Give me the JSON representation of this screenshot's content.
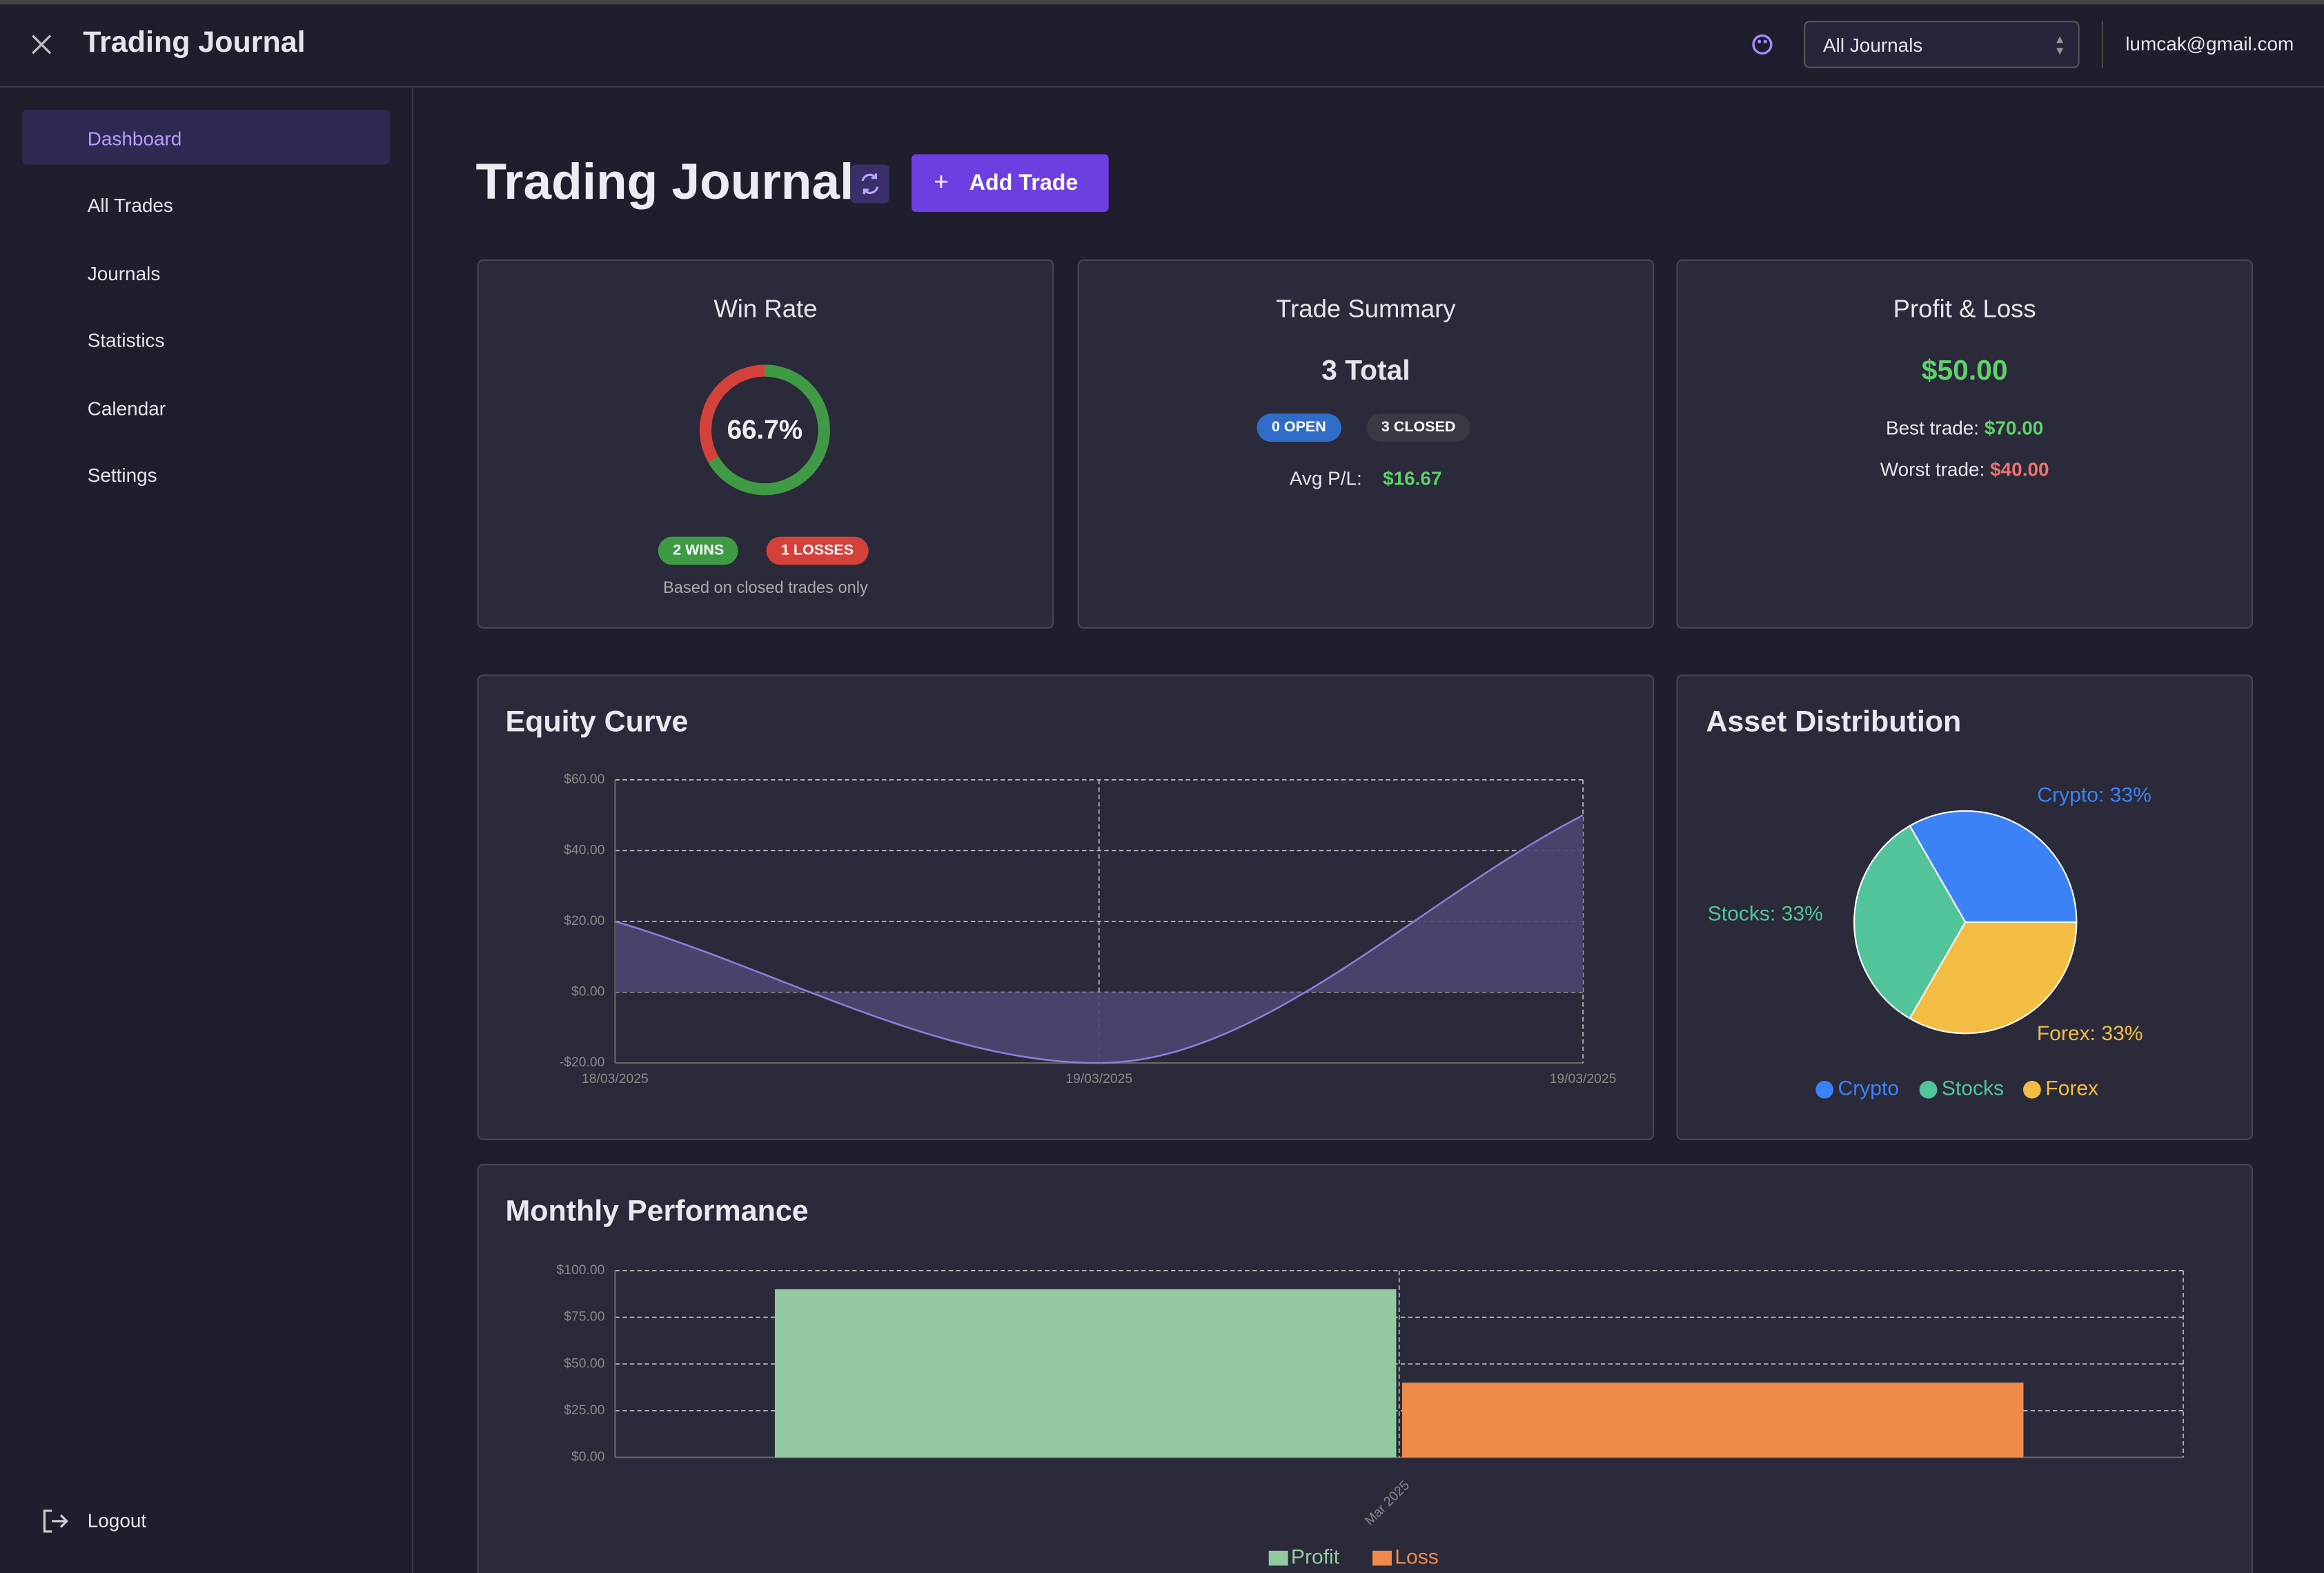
{
  "header": {
    "title": "Trading Journal",
    "journal_select": "All Journals",
    "user_email": "lumcak@gmail.com"
  },
  "sidebar": {
    "items": [
      "Dashboard",
      "All Trades",
      "Journals",
      "Statistics",
      "Calendar",
      "Settings"
    ],
    "logout": "Logout"
  },
  "page": {
    "title": "Trading Journal",
    "add_button": "Add Trade"
  },
  "cards": {
    "win_rate": {
      "title": "Win Rate",
      "value": 66.7,
      "value_label": "66.7%",
      "wins": "2 WINS",
      "losses": "1 LOSSES",
      "note": "Based on closed trades only"
    },
    "trade_summary": {
      "title": "Trade Summary",
      "total": "3 Total",
      "open": "0 OPEN",
      "closed": "3 CLOSED",
      "avg_label": "Avg P/L:",
      "avg_value": "$16.67"
    },
    "profit_loss": {
      "title": "Profit & Loss",
      "total": "$50.00",
      "best_label": "Best trade:",
      "best_value": "$70.00",
      "worst_label": "Worst trade:",
      "worst_value": "$40.00"
    }
  },
  "chart_data": [
    {
      "type": "line",
      "title": "Equity Curve",
      "categories": [
        "18/03/2025",
        "19/03/2025",
        "19/03/2025"
      ],
      "values": [
        20,
        -20,
        50
      ],
      "color": "#8b7fd6",
      "fill": "#4a4670",
      "ylim": [
        -20,
        60
      ],
      "yticks": [
        {
          "value": -20,
          "label": "-$20.00"
        },
        {
          "value": 0,
          "label": "$0.00"
        },
        {
          "value": 20,
          "label": "$20.00"
        },
        {
          "value": 40,
          "label": "$40.00"
        },
        {
          "value": 60,
          "label": "$60.00"
        }
      ],
      "grid": true
    },
    {
      "type": "pie",
      "title": "Asset Distribution",
      "categories": [
        "Crypto",
        "Stocks",
        "Forex"
      ],
      "values": [
        33,
        33,
        33
      ],
      "value_labels": [
        "Crypto: 33%",
        "Stocks: 33%",
        "Forex: 33%"
      ],
      "colors": [
        "#3b82f6",
        "#52c49a",
        "#f2bd42"
      ],
      "legend": "bottom"
    },
    {
      "type": "bar",
      "title": "Monthly Performance",
      "categories": [
        "Mar 2025"
      ],
      "series": [
        {
          "name": "Profit",
          "color": "#93c9a0",
          "values": [
            90
          ]
        },
        {
          "name": "Loss",
          "color": "#f08a4b",
          "values": [
            40
          ]
        }
      ],
      "ylim": [
        0,
        100
      ],
      "yticks": [
        {
          "value": 0,
          "label": "$0.00"
        },
        {
          "value": 25,
          "label": "$25.00"
        },
        {
          "value": 50,
          "label": "$50.00"
        },
        {
          "value": 75,
          "label": "$75.00"
        },
        {
          "value": 100,
          "label": "$100.00"
        }
      ],
      "grid": true,
      "legend": "bottom"
    }
  ]
}
